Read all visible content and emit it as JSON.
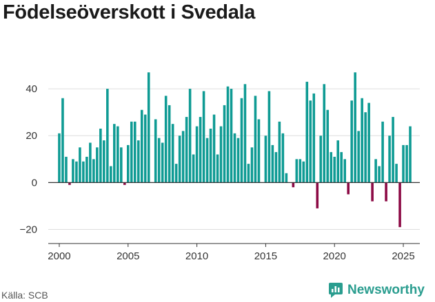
{
  "header": {
    "title": "Födelseöverskott i Svedala"
  },
  "footer": {
    "source": "Källa: SCB",
    "brand": "Newsworthy"
  },
  "colors": {
    "positive": "#0f9b94",
    "negative": "#8c0a45",
    "grid": "#dddddd",
    "axis": "#333333"
  },
  "chart_data": {
    "type": "bar",
    "title": "Födelseöverskott i Svedala",
    "xlabel": "",
    "ylabel": "",
    "ylim": [
      -26,
      50
    ],
    "xlim": [
      1999.2,
      2026.2
    ],
    "grid": true,
    "yticks": [
      -20,
      0,
      20,
      40
    ],
    "ytick_labels": [
      "−20",
      "0",
      "20",
      "40"
    ],
    "xticks": [
      2000,
      2005,
      2010,
      2015,
      2020,
      2025
    ],
    "xtick_labels": [
      "2000",
      "2005",
      "2010",
      "2015",
      "2020",
      "2025"
    ],
    "period": "quarterly",
    "start": "2000Q1",
    "values": [
      21,
      36,
      11,
      -1,
      10,
      9,
      15,
      9,
      11,
      17,
      10,
      15,
      23,
      18,
      40,
      7,
      25,
      24,
      15,
      -1,
      16,
      26,
      26,
      18,
      31,
      29,
      47,
      0,
      27,
      19,
      17,
      37,
      33,
      25,
      8,
      20,
      22,
      28,
      40,
      12,
      24,
      28,
      39,
      19,
      23,
      29,
      12,
      24,
      33,
      41,
      40,
      21,
      19,
      36,
      42,
      8,
      15,
      37,
      27,
      0,
      20,
      39,
      16,
      13,
      26,
      21,
      4,
      0,
      -2,
      10,
      10,
      9,
      43,
      35,
      38,
      -11,
      20,
      42,
      31,
      13,
      11,
      18,
      13,
      10,
      -5,
      35,
      47,
      22,
      36,
      30,
      34,
      -8,
      10,
      7,
      26,
      -8,
      20,
      28,
      8,
      -19,
      16,
      16,
      24
    ]
  }
}
